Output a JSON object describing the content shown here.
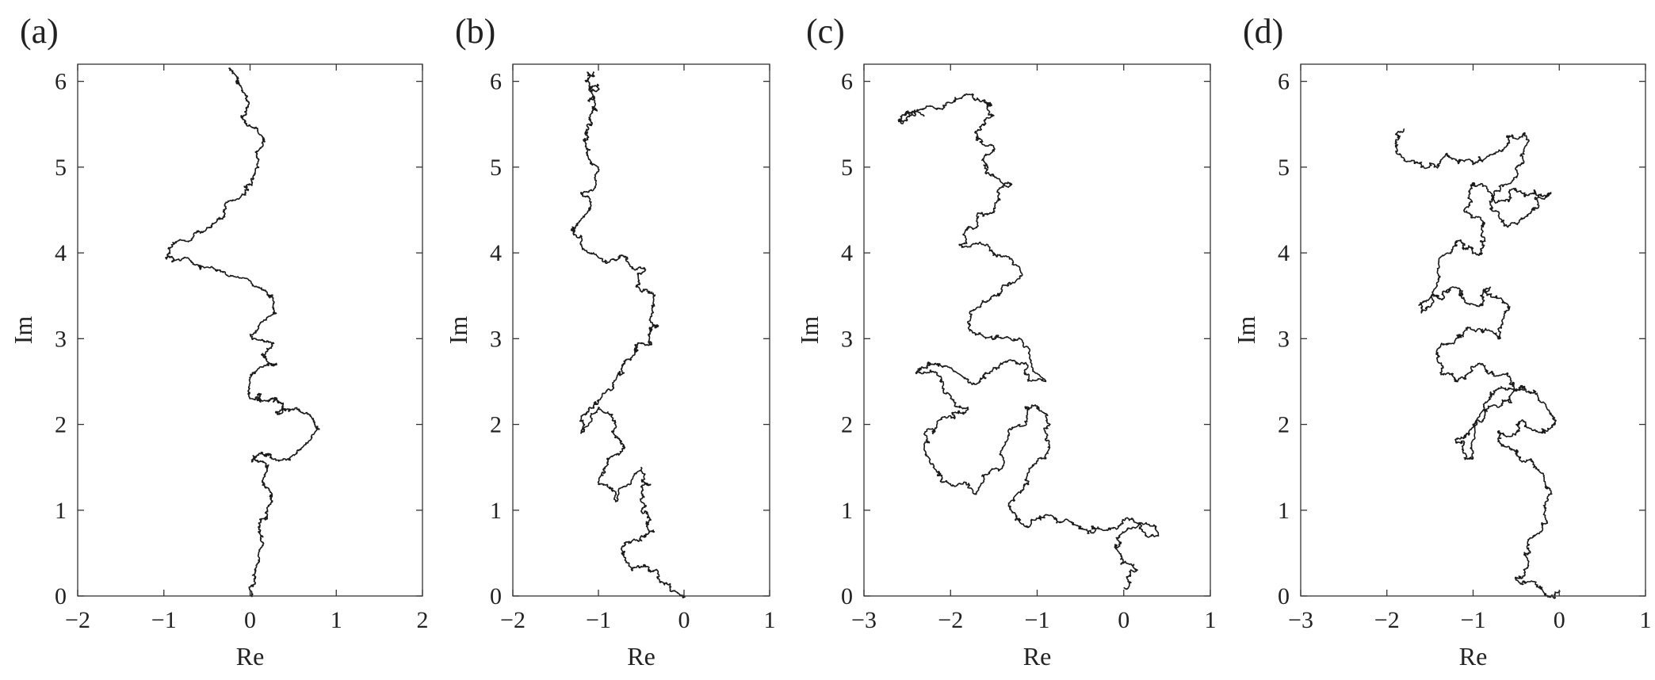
{
  "figure": {
    "style": {
      "line_color": "#1a1a1a",
      "axes_color": "#333333",
      "background": "#ffffff"
    }
  },
  "chart_data": [
    {
      "panel": "(a)",
      "type": "line",
      "xlabel": "Re",
      "ylabel": "Im",
      "xlim": [
        -2,
        2
      ],
      "ylim": [
        0,
        6.2
      ],
      "xticks": [
        -2,
        -1,
        0,
        1,
        2
      ],
      "xtick_labels": [
        "−2",
        "−1",
        "0",
        "1",
        "2"
      ],
      "yticks": [
        0,
        1,
        2,
        3,
        4,
        5,
        6
      ],
      "ytick_labels": [
        "0",
        "1",
        "2",
        "3",
        "4",
        "5",
        "6"
      ],
      "grid": false,
      "series": [
        {
          "roughness": 0.06,
          "seed": 11,
          "x": [
            0.0,
            0.05,
            0.1,
            0.1,
            0.2,
            0.25,
            0.15,
            0.2,
            0.05,
            0.1,
            0.2,
            0.25,
            0.55,
            0.8,
            0.7,
            0.45,
            0.3,
            0.35,
            0.25,
            0.1,
            0.0,
            0.05,
            0.3,
            0.15,
            0.25,
            0.0,
            0.3,
            0.25,
            0.1,
            -0.35,
            -0.6,
            -0.9,
            -0.95,
            -0.65,
            -0.45,
            -0.3,
            -0.05,
            0.0,
            0.1,
            0.15,
            0.05,
            -0.1,
            -0.05,
            -0.15,
            -0.25
          ],
          "y": [
            0.0,
            0.2,
            0.5,
            0.75,
            0.9,
            1.1,
            1.3,
            1.5,
            1.6,
            1.65,
            1.65,
            1.6,
            1.7,
            1.95,
            2.1,
            2.15,
            2.15,
            2.25,
            2.3,
            2.35,
            2.3,
            2.6,
            2.7,
            2.8,
            2.95,
            3.05,
            3.3,
            3.5,
            3.6,
            3.8,
            3.85,
            3.9,
            4.05,
            4.2,
            4.3,
            4.5,
            4.7,
            4.8,
            5.0,
            5.3,
            5.45,
            5.6,
            5.8,
            6.0,
            6.15
          ]
        }
      ]
    },
    {
      "panel": "(b)",
      "type": "line",
      "xlabel": "Re",
      "ylabel": "Im",
      "xlim": [
        -2,
        1
      ],
      "ylim": [
        0,
        6.2
      ],
      "xticks": [
        -2,
        -1,
        0,
        1
      ],
      "xtick_labels": [
        "−2",
        "−1",
        "0",
        "1"
      ],
      "yticks": [
        0,
        1,
        2,
        3,
        4,
        5,
        6
      ],
      "ytick_labels": [
        "0",
        "1",
        "2",
        "3",
        "4",
        "5",
        "6"
      ],
      "grid": false,
      "series": [
        {
          "roughness": 0.07,
          "seed": 23,
          "x": [
            0.0,
            -0.2,
            -0.4,
            -0.6,
            -0.7,
            -0.5,
            -0.35,
            -0.4,
            -0.5,
            -0.4,
            -0.5,
            -0.8,
            -1.0,
            -0.9,
            -0.7,
            -0.8,
            -1.0,
            -1.2,
            -1.1,
            -0.9,
            -0.7,
            -0.6,
            -0.5,
            -0.4,
            -0.3,
            -0.35,
            -0.5,
            -0.45,
            -0.7,
            -0.95,
            -1.2,
            -1.3,
            -1.1,
            -1.2,
            -1.0,
            -1.1,
            -1.15,
            -1.1,
            -1.05,
            -1.1,
            -1.0,
            -1.15,
            -1.05
          ],
          "y": [
            0.0,
            0.15,
            0.3,
            0.3,
            0.5,
            0.65,
            0.75,
            0.9,
            1.1,
            1.3,
            1.5,
            1.1,
            1.3,
            1.6,
            1.75,
            2.0,
            2.2,
            1.9,
            2.2,
            2.4,
            2.6,
            2.8,
            2.95,
            3.05,
            3.15,
            3.4,
            3.55,
            3.8,
            3.95,
            3.9,
            4.2,
            4.3,
            4.5,
            4.7,
            5.0,
            5.2,
            5.4,
            5.55,
            5.7,
            5.8,
            5.9,
            6.0,
            6.1
          ]
        }
      ]
    },
    {
      "panel": "(c)",
      "type": "line",
      "xlabel": "Re",
      "ylabel": "Im",
      "xlim": [
        -3,
        1
      ],
      "ylim": [
        0,
        6.2
      ],
      "xticks": [
        -3,
        -2,
        -1,
        0,
        1
      ],
      "xtick_labels": [
        "−3",
        "−2",
        "−1",
        "0",
        "1"
      ],
      "yticks": [
        0,
        1,
        2,
        3,
        4,
        5,
        6
      ],
      "ytick_labels": [
        "0",
        "1",
        "2",
        "3",
        "4",
        "5",
        "6"
      ],
      "grid": false,
      "series": [
        {
          "roughness": 0.085,
          "seed": 37,
          "x": [
            0.0,
            0.15,
            -0.1,
            0.1,
            0.4,
            0.1,
            -0.3,
            -0.5,
            -0.8,
            -1.1,
            -1.3,
            -1.1,
            -0.9,
            -0.85,
            -1.0,
            -1.2,
            -1.4,
            -1.7,
            -2.0,
            -2.2,
            -2.3,
            -2.0,
            -1.8,
            -2.1,
            -2.4,
            -2.2,
            -1.8,
            -1.6,
            -1.2,
            -0.9,
            -1.2,
            -1.5,
            -1.8,
            -1.5,
            -1.2,
            -1.5,
            -1.9,
            -1.7,
            -1.5,
            -1.3,
            -1.6,
            -1.5,
            -1.7,
            -1.5,
            -1.6,
            -1.9,
            -2.2,
            -2.5,
            -2.6,
            -2.3
          ],
          "y": [
            0.1,
            0.3,
            0.6,
            0.8,
            0.7,
            0.9,
            0.8,
            0.8,
            0.9,
            0.8,
            1.0,
            1.3,
            1.6,
            2.0,
            2.2,
            2.0,
            1.5,
            1.2,
            1.3,
            1.5,
            1.9,
            2.1,
            2.2,
            2.5,
            2.6,
            2.7,
            2.5,
            2.6,
            2.7,
            2.5,
            3.0,
            3.0,
            3.2,
            3.5,
            3.7,
            4.0,
            4.1,
            4.3,
            4.5,
            4.8,
            5.0,
            5.2,
            5.4,
            5.6,
            5.75,
            5.8,
            5.7,
            5.65,
            5.55,
            5.6
          ]
        }
      ]
    },
    {
      "panel": "(d)",
      "type": "line",
      "xlabel": "Re",
      "ylabel": "Im",
      "xlim": [
        -3,
        1
      ],
      "ylim": [
        0,
        6.2
      ],
      "xticks": [
        -3,
        -2,
        -1,
        0,
        1
      ],
      "xtick_labels": [
        "−3",
        "−2",
        "−1",
        "0",
        "1"
      ],
      "yticks": [
        0,
        1,
        2,
        3,
        4,
        5,
        6
      ],
      "ytick_labels": [
        "0",
        "1",
        "2",
        "3",
        "4",
        "5",
        "6"
      ],
      "grid": false,
      "series": [
        {
          "roughness": 0.09,
          "seed": 53,
          "x": [
            0.0,
            -0.2,
            -0.5,
            -0.4,
            -0.2,
            -0.1,
            -0.3,
            -0.5,
            -0.7,
            -0.5,
            -0.2,
            -0.05,
            -0.3,
            -0.5,
            -0.7,
            -1.0,
            -1.2,
            -1.0,
            -0.8,
            -0.5,
            -0.6,
            -0.9,
            -1.2,
            -1.4,
            -1.2,
            -1.0,
            -0.7,
            -0.6,
            -0.8,
            -1.0,
            -1.2,
            -1.4,
            -1.6,
            -1.4,
            -1.1,
            -0.9,
            -0.9,
            -1.1,
            -1.0,
            -0.7,
            -0.4,
            -0.1,
            -0.3,
            -0.6,
            -0.8,
            -0.5,
            -0.4,
            -0.7,
            -1.0,
            -1.3,
            -1.6,
            -1.9,
            -1.8
          ],
          "y": [
            0.05,
            0.1,
            0.2,
            0.5,
            0.8,
            1.2,
            1.5,
            1.7,
            1.9,
            2.0,
            1.9,
            2.0,
            2.4,
            2.4,
            2.2,
            2.0,
            1.8,
            1.6,
            2.3,
            2.4,
            2.6,
            2.7,
            2.5,
            2.8,
            3.0,
            3.1,
            3.0,
            3.4,
            3.6,
            3.4,
            3.6,
            3.5,
            3.3,
            3.9,
            4.1,
            4.0,
            4.3,
            4.5,
            4.8,
            4.6,
            4.7,
            4.7,
            4.5,
            4.3,
            4.6,
            5.0,
            5.4,
            5.2,
            5.05,
            5.15,
            5.0,
            5.25,
            5.45
          ]
        }
      ]
    }
  ]
}
